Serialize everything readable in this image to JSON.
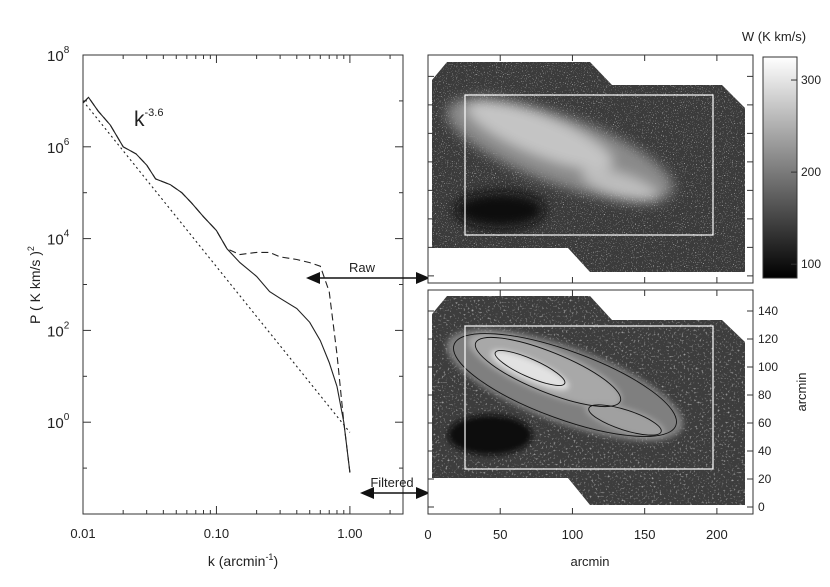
{
  "chart_data": [
    {
      "type": "line",
      "ylabel": "P ( K km/s )",
      "ylabel_sup": "2",
      "xlabel": "k (arcmin",
      "xlabel_sup": "-1",
      "xlabel_end": ")",
      "xscale": "log",
      "yscale": "log",
      "xlim": [
        0.01,
        2.5
      ],
      "ylim": [
        0.01,
        100000000
      ],
      "x_ticks": [
        {
          "value": 0.01,
          "label": "0.01"
        },
        {
          "value": 0.1,
          "label": "0.10"
        },
        {
          "value": 1,
          "label": "1.00"
        }
      ],
      "y_ticks": [
        {
          "value": 1,
          "base": "10",
          "exp": "0"
        },
        {
          "value": 100,
          "base": "10",
          "exp": "2"
        },
        {
          "value": 10000,
          "base": "10",
          "exp": "4"
        },
        {
          "value": 1000000,
          "base": "10",
          "exp": "6"
        },
        {
          "value": 100000000,
          "base": "10",
          "exp": "8"
        }
      ],
      "annotation_base": "k",
      "annotation_exp": "-3.6",
      "series": [
        {
          "style": "dashed",
          "x": [
            0.01,
            0.011,
            0.013,
            0.016,
            0.02,
            0.025,
            0.03,
            0.035,
            0.045,
            0.055,
            0.065,
            0.08,
            0.1,
            0.12,
            0.15,
            0.2,
            0.25,
            0.3,
            0.4,
            0.5,
            0.6,
            0.7,
            0.8,
            0.9,
            1.0
          ],
          "y": [
            9000000,
            12000000,
            6000000,
            3000000,
            1000000,
            700000,
            400000,
            200000,
            150000,
            100000,
            60000,
            30000,
            15000,
            6000,
            4500,
            5000,
            5000,
            4000,
            3500,
            3000,
            2500,
            700,
            30,
            1,
            0.08
          ]
        },
        {
          "style": "solid",
          "x": [
            0.01,
            0.011,
            0.013,
            0.016,
            0.02,
            0.025,
            0.03,
            0.035,
            0.045,
            0.055,
            0.065,
            0.08,
            0.1,
            0.12,
            0.15,
            0.2,
            0.25,
            0.3,
            0.4,
            0.5,
            0.6,
            0.7,
            0.8,
            0.9,
            1.0
          ],
          "y": [
            9000000,
            12000000,
            6000000,
            3000000,
            1000000,
            700000,
            400000,
            200000,
            150000,
            100000,
            60000,
            30000,
            15000,
            6000,
            3000,
            1500,
            700,
            500,
            300,
            150,
            60,
            20,
            6,
            1,
            0.08
          ]
        },
        {
          "style": "dotted",
          "x": [
            0.01,
            1.0
          ],
          "y": [
            10000000,
            0.6
          ]
        }
      ]
    },
    {
      "type": "heatmap",
      "xlabel": "arcmin",
      "ylabel": "arcmin",
      "xlim": [
        0,
        225
      ],
      "ylim": [
        -5,
        155
      ],
      "x_ticks": [
        0,
        50,
        100,
        150,
        200
      ],
      "y_ticks": [
        0,
        20,
        40,
        60,
        80,
        100,
        120,
        140
      ],
      "colorbar_label": "W (K km/s)",
      "colorbar_ticks": [
        100,
        200,
        300
      ],
      "colorbar_range": [
        85,
        325
      ],
      "panels": [
        "raw",
        "filtered"
      ]
    }
  ],
  "annotations": {
    "raw": "Raw",
    "filtered": "Filtered"
  }
}
